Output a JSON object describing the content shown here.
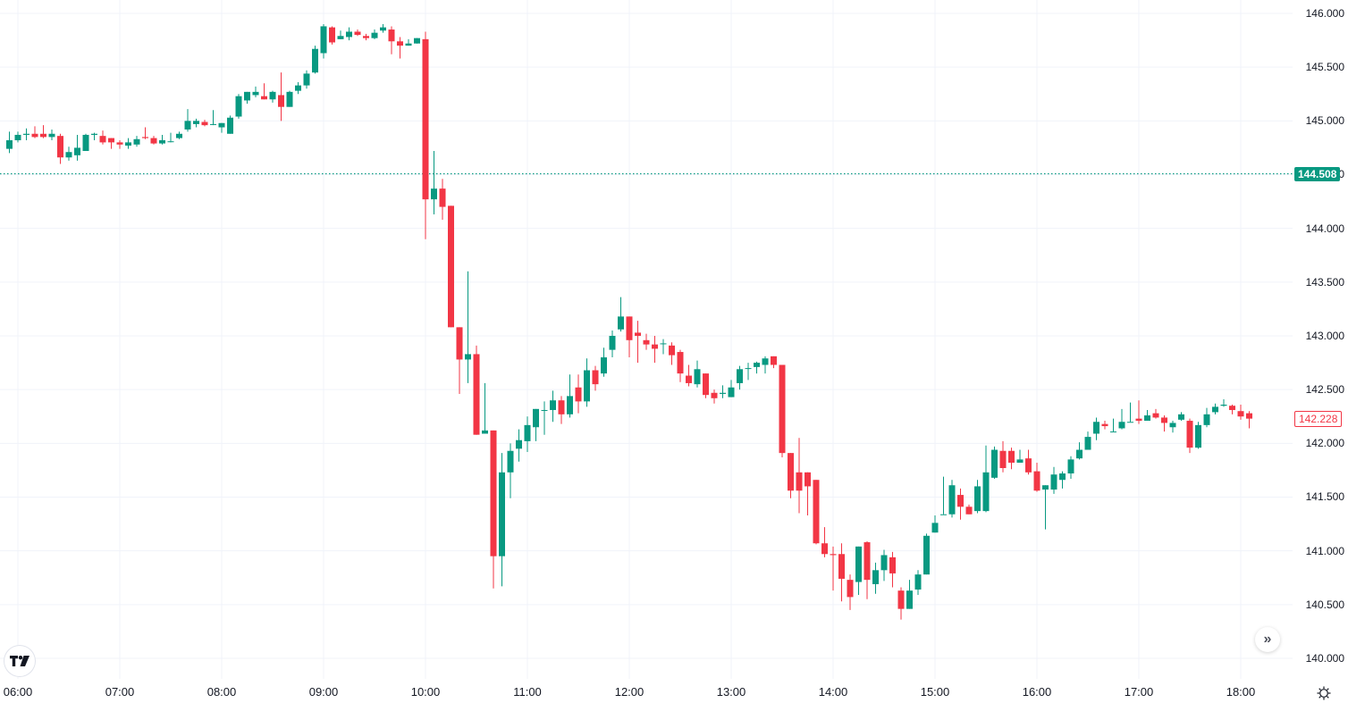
{
  "colors": {
    "up": "#089981",
    "down": "#f23645",
    "grid": "#f0f3fa",
    "text": "#131722"
  },
  "price_axis": {
    "labels": [
      "146.000",
      "145.500",
      "145.000",
      "144.500",
      "144.000",
      "143.500",
      "143.000",
      "142.500",
      "142.000",
      "141.500",
      "141.000",
      "140.500",
      "140.000"
    ],
    "last_price": "144.508",
    "current_price": "142.228"
  },
  "time_axis": {
    "labels": [
      "06:00",
      "07:00",
      "08:00",
      "09:00",
      "10:00",
      "11:00",
      "12:00",
      "13:00",
      "14:00",
      "15:00",
      "16:00",
      "17:00",
      "18:00"
    ]
  },
  "buttons": {
    "scroll_to_latest": "»"
  },
  "icons": {
    "logo": "tradingview-logo-icon",
    "settings": "gear-icon"
  },
  "chart_data": {
    "type": "candlestick",
    "title": "",
    "xlabel": "",
    "ylabel": "",
    "ylim": [
      139.9,
      146.1
    ],
    "interval": "5m",
    "grid": true,
    "reference_line": {
      "label": "144.508",
      "value": 144.508,
      "style": "dotted",
      "color": "#089981"
    },
    "current_price_label": {
      "label": "142.228",
      "value": 142.228,
      "color": "#f23645"
    },
    "candles_start": "05:55",
    "candles": [
      [
        144.74,
        144.82,
        144.9,
        144.7
      ],
      [
        144.82,
        144.87,
        144.9,
        144.8
      ],
      [
        144.87,
        144.88,
        144.93,
        144.82
      ],
      [
        144.88,
        144.85,
        144.95,
        144.84
      ],
      [
        144.88,
        144.85,
        144.96,
        144.84
      ],
      [
        144.85,
        144.88,
        144.92,
        144.82
      ],
      [
        144.86,
        144.66,
        144.88,
        144.6
      ],
      [
        144.66,
        144.71,
        144.76,
        144.63
      ],
      [
        144.68,
        144.75,
        144.87,
        144.63
      ],
      [
        144.72,
        144.87,
        144.88,
        144.72
      ],
      [
        144.87,
        144.88,
        144.89,
        144.82
      ],
      [
        144.86,
        144.8,
        144.91,
        144.78
      ],
      [
        144.84,
        144.8,
        144.84,
        144.74
      ],
      [
        144.8,
        144.78,
        144.82,
        144.74
      ],
      [
        144.77,
        144.8,
        144.84,
        144.74
      ],
      [
        144.78,
        144.83,
        144.86,
        144.76
      ],
      [
        144.85,
        144.84,
        144.94,
        144.83
      ],
      [
        144.84,
        144.79,
        144.86,
        144.78
      ],
      [
        144.79,
        144.82,
        144.87,
        144.78
      ],
      [
        144.81,
        144.81,
        144.89,
        144.8
      ],
      [
        144.84,
        144.88,
        144.9,
        144.83
      ],
      [
        144.92,
        145.0,
        145.11,
        144.9
      ],
      [
        144.97,
        145.0,
        145.02,
        144.94
      ],
      [
        144.99,
        144.96,
        145.01,
        144.95
      ],
      [
        144.97,
        144.97,
        145.1,
        144.96
      ],
      [
        144.94,
        144.98,
        144.97,
        144.89
      ],
      [
        144.88,
        145.03,
        145.05,
        144.88
      ],
      [
        145.04,
        145.23,
        145.25,
        145.02
      ],
      [
        145.19,
        145.27,
        145.27,
        145.16
      ],
      [
        145.24,
        145.27,
        145.32,
        145.22
      ],
      [
        145.23,
        145.2,
        145.35,
        145.2
      ],
      [
        145.2,
        145.27,
        145.28,
        145.17
      ],
      [
        145.24,
        145.13,
        145.45,
        145.0
      ],
      [
        145.13,
        145.27,
        145.28,
        145.13
      ],
      [
        145.28,
        145.33,
        145.36,
        145.25
      ],
      [
        145.33,
        145.44,
        145.47,
        145.3
      ],
      [
        145.45,
        145.67,
        145.7,
        145.44
      ],
      [
        145.63,
        145.88,
        145.9,
        145.58
      ],
      [
        145.87,
        145.73,
        145.88,
        145.71
      ],
      [
        145.76,
        145.79,
        145.84,
        145.77
      ],
      [
        145.78,
        145.83,
        145.87,
        145.75
      ],
      [
        145.83,
        145.8,
        145.85,
        145.79
      ],
      [
        145.79,
        145.77,
        145.81,
        145.75
      ],
      [
        145.77,
        145.82,
        145.85,
        145.76
      ],
      [
        145.84,
        145.87,
        145.9,
        145.82
      ],
      [
        145.85,
        145.74,
        145.88,
        145.62
      ],
      [
        145.74,
        145.7,
        145.78,
        145.58
      ],
      [
        145.7,
        145.72,
        145.76,
        145.7
      ],
      [
        145.72,
        145.77,
        145.77,
        145.72
      ],
      [
        145.76,
        144.27,
        145.83,
        143.9
      ],
      [
        144.27,
        144.37,
        144.72,
        144.13
      ],
      [
        144.37,
        144.2,
        144.46,
        144.08
      ],
      [
        144.21,
        143.08,
        144.21,
        143.08
      ],
      [
        143.08,
        142.78,
        143.08,
        142.46
      ],
      [
        142.78,
        142.83,
        143.6,
        142.56
      ],
      [
        142.83,
        142.08,
        142.91,
        142.08
      ],
      [
        142.09,
        142.12,
        142.56,
        142.09
      ],
      [
        142.12,
        140.95,
        142.12,
        140.65
      ],
      [
        140.95,
        141.73,
        141.91,
        140.67
      ],
      [
        141.73,
        141.93,
        142.0,
        141.49
      ],
      [
        141.95,
        142.03,
        142.13,
        141.83
      ],
      [
        142.02,
        142.17,
        142.25,
        141.92
      ],
      [
        142.15,
        142.32,
        142.31,
        142.02
      ],
      [
        142.31,
        142.31,
        142.39,
        142.08
      ],
      [
        142.31,
        142.4,
        142.49,
        142.2
      ],
      [
        142.4,
        142.27,
        142.44,
        142.18
      ],
      [
        142.27,
        142.44,
        142.64,
        142.24
      ],
      [
        142.52,
        142.39,
        142.64,
        142.28
      ],
      [
        142.39,
        142.68,
        142.79,
        142.34
      ],
      [
        142.68,
        142.55,
        142.72,
        142.49
      ],
      [
        142.65,
        142.8,
        142.89,
        142.62
      ],
      [
        142.87,
        143.0,
        143.05,
        142.8
      ],
      [
        143.06,
        143.18,
        143.36,
        143.04
      ],
      [
        143.18,
        142.96,
        143.18,
        142.8
      ],
      [
        143.03,
        143.0,
        143.14,
        142.75
      ],
      [
        142.96,
        142.92,
        143.02,
        142.87
      ],
      [
        142.92,
        142.88,
        143.0,
        142.75
      ],
      [
        142.93,
        142.93,
        142.97,
        142.83
      ],
      [
        142.91,
        142.82,
        142.94,
        142.73
      ],
      [
        142.85,
        142.65,
        142.87,
        142.57
      ],
      [
        142.63,
        142.56,
        142.73,
        142.53
      ],
      [
        142.55,
        142.69,
        142.77,
        142.52
      ],
      [
        142.65,
        142.45,
        142.65,
        142.42
      ],
      [
        142.47,
        142.42,
        142.5,
        142.37
      ],
      [
        142.46,
        142.47,
        142.54,
        142.42
      ],
      [
        142.43,
        142.52,
        142.59,
        142.44
      ],
      [
        142.56,
        142.69,
        142.72,
        142.5
      ],
      [
        142.7,
        142.7,
        142.75,
        142.59
      ],
      [
        142.71,
        142.75,
        142.76,
        142.65
      ],
      [
        142.73,
        142.79,
        142.81,
        142.65
      ],
      [
        142.81,
        142.73,
        142.79,
        142.7
      ],
      [
        142.73,
        141.91,
        142.73,
        141.87
      ],
      [
        141.91,
        141.56,
        141.9,
        141.49
      ],
      [
        141.73,
        141.56,
        142.05,
        141.35
      ],
      [
        141.73,
        141.6,
        141.73,
        141.33
      ],
      [
        141.66,
        141.07,
        141.65,
        141.06
      ],
      [
        141.07,
        140.97,
        141.22,
        140.94
      ],
      [
        140.97,
        140.96,
        141.04,
        140.63
      ],
      [
        140.97,
        140.74,
        141.07,
        140.53
      ],
      [
        140.73,
        140.57,
        140.78,
        140.45
      ],
      [
        140.71,
        141.04,
        141.04,
        140.59
      ],
      [
        141.08,
        140.73,
        141.09,
        140.55
      ],
      [
        140.69,
        140.82,
        140.89,
        140.6
      ],
      [
        140.82,
        140.96,
        141.01,
        140.72
      ],
      [
        140.94,
        140.79,
        140.99,
        140.66
      ],
      [
        140.63,
        140.46,
        140.66,
        140.36
      ],
      [
        140.46,
        140.63,
        140.73,
        140.47
      ],
      [
        140.64,
        140.78,
        140.82,
        140.59
      ],
      [
        140.78,
        141.14,
        141.16,
        140.83
      ],
      [
        141.17,
        141.26,
        141.33,
        141.17
      ],
      [
        141.34,
        141.34,
        141.69,
        141.34
      ],
      [
        141.34,
        141.61,
        141.66,
        141.31
      ],
      [
        141.52,
        141.41,
        141.58,
        141.29
      ],
      [
        141.41,
        141.34,
        141.43,
        141.34
      ],
      [
        141.37,
        141.6,
        141.66,
        141.35
      ],
      [
        141.37,
        141.73,
        141.98,
        141.36
      ],
      [
        141.68,
        141.94,
        141.97,
        141.67
      ],
      [
        141.93,
        141.77,
        142.02,
        141.73
      ],
      [
        141.93,
        141.82,
        141.96,
        141.76
      ],
      [
        141.82,
        141.85,
        141.94,
        141.82
      ],
      [
        141.86,
        141.73,
        141.94,
        141.71
      ],
      [
        141.74,
        141.56,
        141.82,
        141.55
      ],
      [
        141.57,
        141.61,
        141.6,
        141.2
      ],
      [
        141.57,
        141.71,
        141.78,
        141.53
      ],
      [
        141.66,
        141.72,
        141.74,
        141.58
      ],
      [
        141.72,
        141.85,
        141.88,
        141.67
      ],
      [
        141.86,
        141.94,
        142.01,
        141.85
      ],
      [
        141.94,
        142.06,
        142.11,
        141.96
      ],
      [
        142.09,
        142.2,
        142.24,
        142.03
      ],
      [
        142.18,
        142.16,
        142.21,
        142.13
      ],
      [
        142.11,
        142.11,
        142.23,
        142.11
      ],
      [
        142.14,
        142.2,
        142.32,
        142.13
      ],
      [
        142.2,
        142.2,
        142.38,
        142.2
      ],
      [
        142.23,
        142.21,
        142.4,
        142.18
      ],
      [
        142.21,
        142.26,
        142.31,
        142.24
      ],
      [
        142.28,
        142.24,
        142.32,
        142.23
      ],
      [
        142.24,
        142.19,
        142.26,
        142.11
      ],
      [
        142.15,
        142.19,
        142.21,
        142.1
      ],
      [
        142.22,
        142.27,
        142.29,
        142.21
      ],
      [
        142.21,
        141.96,
        142.23,
        141.91
      ],
      [
        141.96,
        142.17,
        142.2,
        141.95
      ],
      [
        142.17,
        142.27,
        142.33,
        142.15
      ],
      [
        142.29,
        142.34,
        142.37,
        142.27
      ],
      [
        142.35,
        142.36,
        142.41,
        142.34
      ],
      [
        142.35,
        142.31,
        142.36,
        142.27
      ],
      [
        142.3,
        142.25,
        142.36,
        142.22
      ],
      [
        142.28,
        142.23,
        142.3,
        142.14
      ]
    ]
  }
}
